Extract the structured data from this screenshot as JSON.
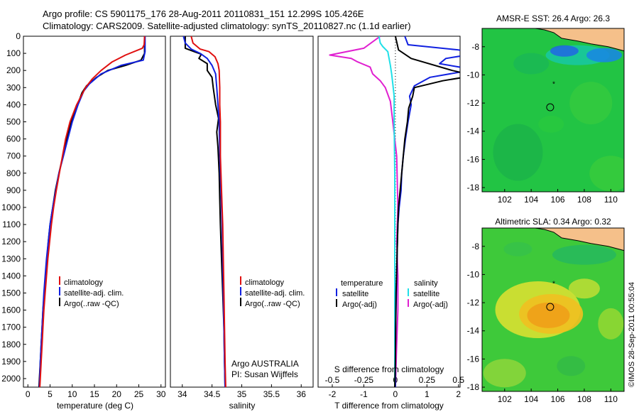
{
  "header": {
    "line1": "Argo profile: CS 5901175_176 28-Aug-2011 20110831_151 12.299S 105.426E",
    "line2": "Climatology: CARS2009. Satellite-adjusted climatology: synTS_20110827.nc (1.1d earlier)"
  },
  "side_text": "©IMOS 28-Sep-2011 00:55:04",
  "colors": {
    "climatology": "#e01010",
    "satellite": "#1020e0",
    "argo": "#000000",
    "salinity_satellite": "#20e0e8",
    "salinity_argo": "#e020d0"
  },
  "chart_data": [
    {
      "type": "line",
      "name": "temperature-profile",
      "xlabel": "temperature (deg C)",
      "xlim": [
        -1,
        31
      ],
      "ylim": [
        2050,
        0
      ],
      "xticks": [
        "0",
        "5",
        "10",
        "15",
        "20",
        "25",
        "30"
      ],
      "yticks": [
        "0",
        "100",
        "200",
        "300",
        "400",
        "500",
        "600",
        "700",
        "800",
        "900",
        "1000",
        "1100",
        "1200",
        "1300",
        "1400",
        "1500",
        "1600",
        "1700",
        "1800",
        "1900",
        "2000"
      ],
      "legend": [
        "climatology",
        "satellite-adj. clim.",
        "Argo(..raw -QC)"
      ],
      "series": [
        {
          "name": "climatology",
          "color": "#e01010",
          "points": [
            [
              26.3,
              0
            ],
            [
              26.2,
              50
            ],
            [
              25.8,
              70
            ],
            [
              22,
              110
            ],
            [
              19,
              150
            ],
            [
              16.5,
              200
            ],
            [
              14.5,
              250
            ],
            [
              13,
              300
            ],
            [
              11,
              400
            ],
            [
              9.5,
              500
            ],
            [
              8.5,
              600
            ],
            [
              7.8,
              700
            ],
            [
              7.1,
              800
            ],
            [
              6.4,
              900
            ],
            [
              5.8,
              1000
            ],
            [
              5.3,
              1100
            ],
            [
              4.9,
              1200
            ],
            [
              4.5,
              1300
            ],
            [
              4.2,
              1400
            ],
            [
              3.9,
              1500
            ],
            [
              3.6,
              1600
            ],
            [
              3.4,
              1700
            ],
            [
              3.2,
              1800
            ],
            [
              3,
              1900
            ],
            [
              2.7,
              2050
            ]
          ]
        },
        {
          "name": "satellite-adj. clim.",
          "color": "#1020e0",
          "points": [
            [
              26.4,
              0
            ],
            [
              26.4,
              90
            ],
            [
              26,
              140
            ],
            [
              21,
              170
            ],
            [
              16.5,
              220
            ],
            [
              13.8,
              280
            ],
            [
              12.6,
              320
            ],
            [
              11.3,
              400
            ],
            [
              10,
              500
            ],
            [
              9,
              600
            ],
            [
              8,
              700
            ],
            [
              7,
              800
            ],
            [
              6.3,
              900
            ],
            [
              5.6,
              1000
            ],
            [
              5,
              1100
            ],
            [
              4.6,
              1200
            ],
            [
              4.2,
              1300
            ],
            [
              3.9,
              1400
            ],
            [
              3.6,
              1500
            ],
            [
              3.4,
              1600
            ],
            [
              3.2,
              1700
            ],
            [
              3,
              1800
            ],
            [
              2.8,
              1900
            ],
            [
              2.6,
              2050
            ]
          ]
        },
        {
          "name": "Argo(..raw -QC)",
          "color": "#000000",
          "points": [
            [
              26.3,
              0
            ],
            [
              26.3,
              100
            ],
            [
              25.5,
              140
            ],
            [
              22,
              170
            ],
            [
              18,
              200
            ],
            [
              15.5,
              240
            ],
            [
              13.2,
              290
            ],
            [
              12.2,
              330
            ],
            [
              11.2,
              400
            ],
            [
              9.8,
              500
            ],
            [
              8.8,
              600
            ],
            [
              7.9,
              700
            ],
            [
              7,
              800
            ],
            [
              6.2,
              900
            ],
            [
              5.6,
              1000
            ],
            [
              5,
              1100
            ],
            [
              4.6,
              1200
            ],
            [
              4.3,
              1300
            ],
            [
              4,
              1400
            ],
            [
              3.7,
              1500
            ],
            [
              3.4,
              1600
            ],
            [
              3.2,
              1700
            ],
            [
              3,
              1800
            ],
            [
              2.8,
              1900
            ],
            [
              2.6,
              2000
            ],
            [
              2.5,
              2050
            ]
          ]
        }
      ]
    },
    {
      "type": "line",
      "name": "salinity-profile",
      "xlabel": "salinity",
      "xlim": [
        33.8,
        36.2
      ],
      "ylim": [
        2050,
        0
      ],
      "xticks": [
        "34",
        "34.5",
        "35",
        "35.5",
        "36"
      ],
      "legend": [
        "climatology",
        "satellite-adj. clim.",
        "Argo(..raw -QC)"
      ],
      "annotation": [
        "Argo AUSTRALIA",
        "PI: Susan Wijffels"
      ],
      "series": [
        {
          "name": "climatology",
          "color": "#e01010",
          "points": [
            [
              34.15,
              0
            ],
            [
              34.18,
              40
            ],
            [
              34.3,
              75
            ],
            [
              34.45,
              90
            ],
            [
              34.55,
              120
            ],
            [
              34.6,
              160
            ],
            [
              34.62,
              200
            ],
            [
              34.63,
              300
            ],
            [
              34.63,
              400
            ],
            [
              34.64,
              500
            ],
            [
              34.64,
              700
            ],
            [
              34.66,
              900
            ],
            [
              34.68,
              1100
            ],
            [
              34.69,
              1300
            ],
            [
              34.7,
              1500
            ],
            [
              34.71,
              1700
            ],
            [
              34.72,
              1900
            ],
            [
              34.73,
              2050
            ]
          ]
        },
        {
          "name": "satellite-adj. clim.",
          "color": "#1020e0",
          "points": [
            [
              34.02,
              0
            ],
            [
              34.05,
              40
            ],
            [
              34.15,
              75
            ],
            [
              34.3,
              100
            ],
            [
              34.42,
              130
            ],
            [
              34.5,
              170
            ],
            [
              34.56,
              220
            ],
            [
              34.58,
              300
            ],
            [
              34.6,
              400
            ],
            [
              34.62,
              500
            ],
            [
              34.63,
              700
            ],
            [
              34.65,
              900
            ],
            [
              34.67,
              1100
            ],
            [
              34.68,
              1300
            ],
            [
              34.69,
              1500
            ],
            [
              34.7,
              1700
            ],
            [
              34.71,
              1900
            ],
            [
              34.72,
              2050
            ]
          ]
        },
        {
          "name": "Argo(..raw -QC)",
          "color": "#000000",
          "points": [
            [
              34.05,
              0
            ],
            [
              34.05,
              70
            ],
            [
              34.2,
              90
            ],
            [
              34.32,
              105
            ],
            [
              34.28,
              130
            ],
            [
              34.42,
              160
            ],
            [
              34.42,
              200
            ],
            [
              34.5,
              240
            ],
            [
              34.52,
              300
            ],
            [
              34.56,
              400
            ],
            [
              34.61,
              480
            ],
            [
              34.58,
              560
            ],
            [
              34.6,
              650
            ],
            [
              34.62,
              800
            ],
            [
              34.63,
              950
            ],
            [
              34.64,
              1100
            ],
            [
              34.66,
              1300
            ],
            [
              34.68,
              1500
            ],
            [
              34.7,
              1700
            ],
            [
              34.71,
              1900
            ],
            [
              34.72,
              2050
            ]
          ]
        }
      ]
    },
    {
      "type": "line",
      "name": "difference-profile",
      "xlabel": "T difference from climatology",
      "xlabel_top": "S difference from climatology",
      "t_xlim": [
        -2.45,
        2.05
      ],
      "s_xlim": [
        -0.6125,
        0.5125
      ],
      "t_xticks": [
        "-2",
        "-1",
        "0",
        "1",
        "2"
      ],
      "s_xticks": [
        "-0.5",
        "-0.25",
        "0",
        "0.25",
        "0.5"
      ],
      "ylim": [
        2050,
        0
      ],
      "legend": {
        "temperature_heading": "temperature",
        "salinity_heading": "salinity",
        "t_satellite": "satellite",
        "t_argo": "Argo(-adj)",
        "s_satellite": "satellite",
        "s_argo": "Argo(-adj)"
      },
      "series": [
        {
          "name": "T satellite",
          "color": "#1020e0",
          "axis": "t",
          "points": [
            [
              0.3,
              0
            ],
            [
              0.4,
              50
            ],
            [
              2,
              80
            ],
            [
              2.3,
              90
            ],
            [
              2.6,
              100
            ],
            [
              1.6,
              130
            ],
            [
              1.4,
              160
            ],
            [
              2.5,
              195
            ],
            [
              1.1,
              240
            ],
            [
              0.6,
              290
            ],
            [
              0.45,
              350
            ],
            [
              0.5,
              400
            ],
            [
              0.4,
              500
            ],
            [
              0.32,
              600
            ],
            [
              0.25,
              700
            ],
            [
              0.2,
              800
            ],
            [
              0.18,
              900
            ],
            [
              0.12,
              1000
            ],
            [
              0.08,
              1100
            ],
            [
              0.05,
              1300
            ],
            [
              0.03,
              1500
            ],
            [
              0.01,
              1700
            ],
            [
              0,
              1900
            ],
            [
              0,
              2050
            ]
          ]
        },
        {
          "name": "T argo",
          "color": "#000000",
          "axis": "t",
          "points": [
            [
              0,
              0
            ],
            [
              0.1,
              80
            ],
            [
              0.5,
              130
            ],
            [
              1.8,
              200
            ],
            [
              2.5,
              230
            ],
            [
              1.5,
              260
            ],
            [
              0.6,
              300
            ],
            [
              0.55,
              350
            ],
            [
              0.42,
              420
            ],
            [
              0.38,
              500
            ],
            [
              0.3,
              600
            ],
            [
              0.25,
              700
            ],
            [
              0.2,
              800
            ],
            [
              0.15,
              900
            ],
            [
              0.1,
              1000
            ],
            [
              0.08,
              1100
            ],
            [
              0.05,
              1300
            ],
            [
              0.02,
              1500
            ],
            [
              0.01,
              1700
            ],
            [
              0,
              1900
            ],
            [
              -0.02,
              2050
            ]
          ]
        },
        {
          "name": "S satellite",
          "color": "#20e0e8",
          "axis": "s",
          "points": [
            [
              -0.13,
              0
            ],
            [
              -0.12,
              40
            ],
            [
              -0.1,
              60
            ],
            [
              -0.06,
              90
            ],
            [
              -0.05,
              130
            ],
            [
              -0.04,
              170
            ],
            [
              -0.03,
              220
            ],
            [
              -0.02,
              280
            ],
            [
              -0.01,
              350
            ],
            [
              -0.01,
              500
            ],
            [
              -0.005,
              800
            ],
            [
              -0.005,
              1200
            ],
            [
              -0.005,
              1600
            ],
            [
              -0.005,
              2050
            ]
          ]
        },
        {
          "name": "S argo",
          "color": "#e020d0",
          "axis": "s",
          "points": [
            [
              -0.12,
              0
            ],
            [
              -0.25,
              70
            ],
            [
              -0.52,
              110
            ],
            [
              -0.35,
              130
            ],
            [
              -0.3,
              150
            ],
            [
              -0.2,
              180
            ],
            [
              -0.18,
              220
            ],
            [
              -0.12,
              260
            ],
            [
              -0.08,
              300
            ],
            [
              -0.04,
              380
            ],
            [
              -0.02,
              500
            ],
            [
              0.01,
              700
            ],
            [
              0.02,
              1000
            ],
            [
              0.01,
              1200
            ],
            [
              0.02,
              1400
            ],
            [
              0.02,
              1600
            ],
            [
              0.01,
              1800
            ],
            [
              0,
              2050
            ]
          ]
        }
      ]
    },
    {
      "type": "heatmap",
      "name": "sst-map",
      "title": "AMSR-E SST: 26.4 Argo: 26.3",
      "xlim": [
        100.3,
        111
      ],
      "ylim": [
        -18.3,
        -6.7
      ],
      "xticks": [
        "102",
        "104",
        "106",
        "108",
        "110"
      ],
      "yticks": [
        "-8",
        "-10",
        "-12",
        "-14",
        "-16",
        "-18"
      ],
      "argo_position": [
        105.43,
        -12.3
      ],
      "earlier_position": [
        105.7,
        -10.6
      ]
    },
    {
      "type": "heatmap",
      "name": "sla-map",
      "title": "Altimetric SLA: 0.34 Argo: 0.32",
      "xlim": [
        100.3,
        111
      ],
      "ylim": [
        -18.3,
        -6.7
      ],
      "xticks": [
        "102",
        "104",
        "106",
        "108",
        "110"
      ],
      "yticks": [
        "-8",
        "-10",
        "-12",
        "-14",
        "-16",
        "-18"
      ],
      "argo_position": [
        105.43,
        -12.3
      ],
      "earlier_position": [
        105.7,
        -10.6
      ]
    }
  ]
}
